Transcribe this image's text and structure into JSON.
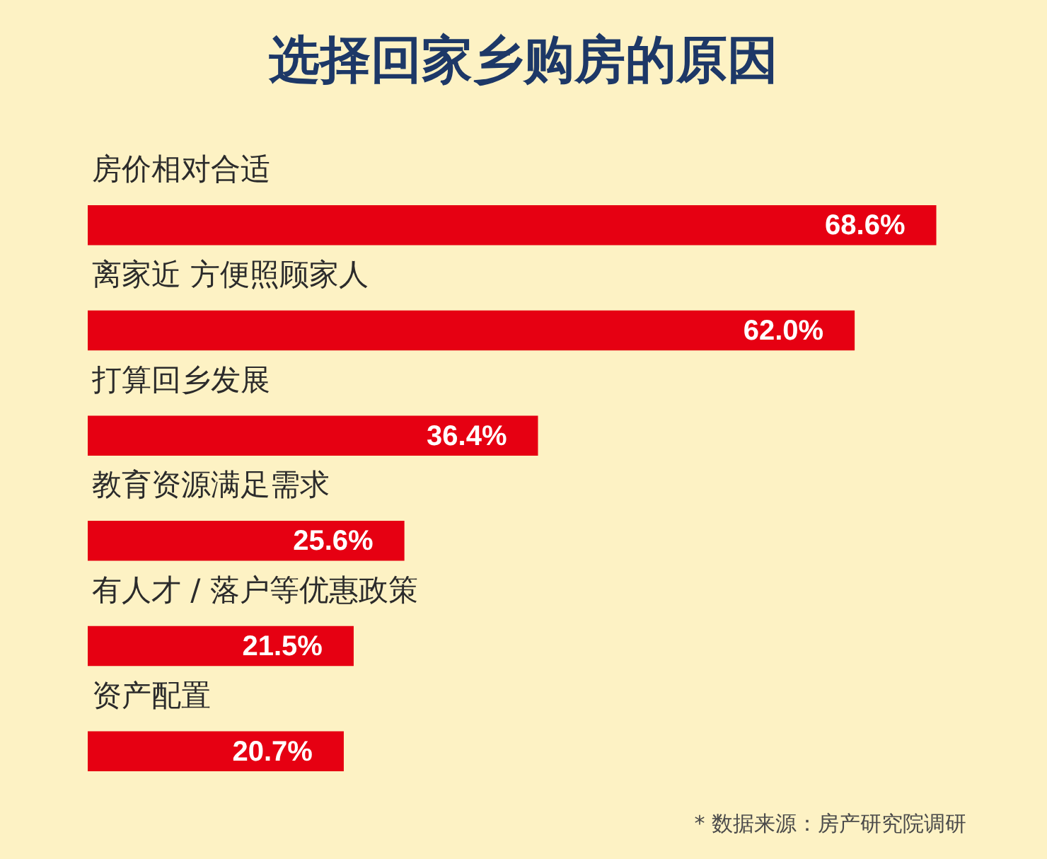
{
  "chart_data": {
    "type": "bar",
    "orientation": "horizontal",
    "title": "选择回家乡购房的原因",
    "categories": [
      "房价相对合适",
      "离家近 方便照顾家人",
      "打算回乡发展",
      "教育资源满足需求",
      "有人才 / 落户等优惠政策",
      "资产配置"
    ],
    "values": [
      68.6,
      62.0,
      36.4,
      25.6,
      21.5,
      20.7
    ],
    "color": "#e60012",
    "value_labels": [
      "68.6%",
      "62.0%",
      "36.4%",
      "25.6%",
      "21.5%",
      "20.7%"
    ],
    "tick_labels": "y",
    "annotations": [
      "* 数据来源：房产研究院调研"
    ]
  }
}
